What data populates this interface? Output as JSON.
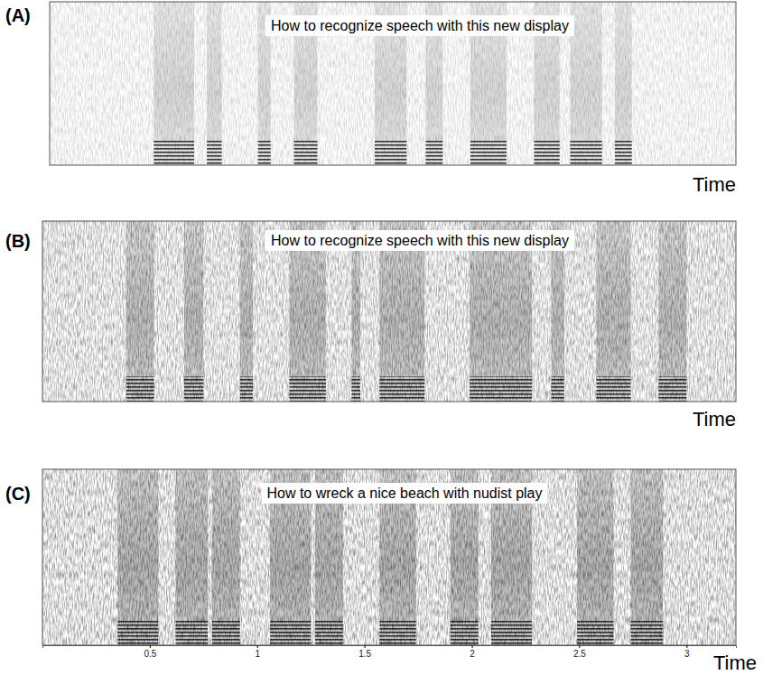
{
  "chart_data": [
    {
      "type": "spectrogram",
      "panel": "(A)",
      "title": "How to recognize speech with this new display",
      "x_label": "Time",
      "xlim": [
        0,
        3.23
      ],
      "tick_labels": false,
      "segments": [
        [
          0.49,
          0.68
        ],
        [
          0.74,
          0.81
        ],
        [
          0.98,
          1.04
        ],
        [
          1.15,
          1.26
        ],
        [
          1.53,
          1.68
        ],
        [
          1.77,
          1.85
        ],
        [
          1.98,
          2.15
        ],
        [
          2.28,
          2.4
        ],
        [
          2.45,
          2.6
        ],
        [
          2.66,
          2.74
        ]
      ]
    },
    {
      "type": "spectrogram",
      "panel": "(B)",
      "title": "How to recognize speech with this new display",
      "x_label": "Time",
      "xlim": [
        0,
        3.23
      ],
      "tick_labels": false,
      "segments": [
        [
          0.39,
          0.52
        ],
        [
          0.66,
          0.75
        ],
        [
          0.92,
          0.98
        ],
        [
          1.15,
          1.32
        ],
        [
          1.44,
          1.48
        ],
        [
          1.57,
          1.78
        ],
        [
          1.99,
          2.28
        ],
        [
          2.37,
          2.43
        ],
        [
          2.58,
          2.74
        ],
        [
          2.87,
          3.0
        ]
      ]
    },
    {
      "type": "spectrogram",
      "panel": "(C)",
      "title": "How to wreck a nice beach with nudist play",
      "x_label": "Time",
      "xlim": [
        0,
        3.23
      ],
      "xticks": [
        0.5,
        1,
        1.5,
        2,
        2.5,
        3
      ],
      "tick_labels": "x",
      "segments": [
        [
          0.35,
          0.54
        ],
        [
          0.62,
          0.77
        ],
        [
          0.79,
          0.92
        ],
        [
          1.06,
          1.25
        ],
        [
          1.27,
          1.4
        ],
        [
          1.57,
          1.74
        ],
        [
          1.9,
          2.03
        ],
        [
          2.09,
          2.28
        ],
        [
          2.49,
          2.66
        ],
        [
          2.74,
          2.89
        ]
      ]
    }
  ]
}
